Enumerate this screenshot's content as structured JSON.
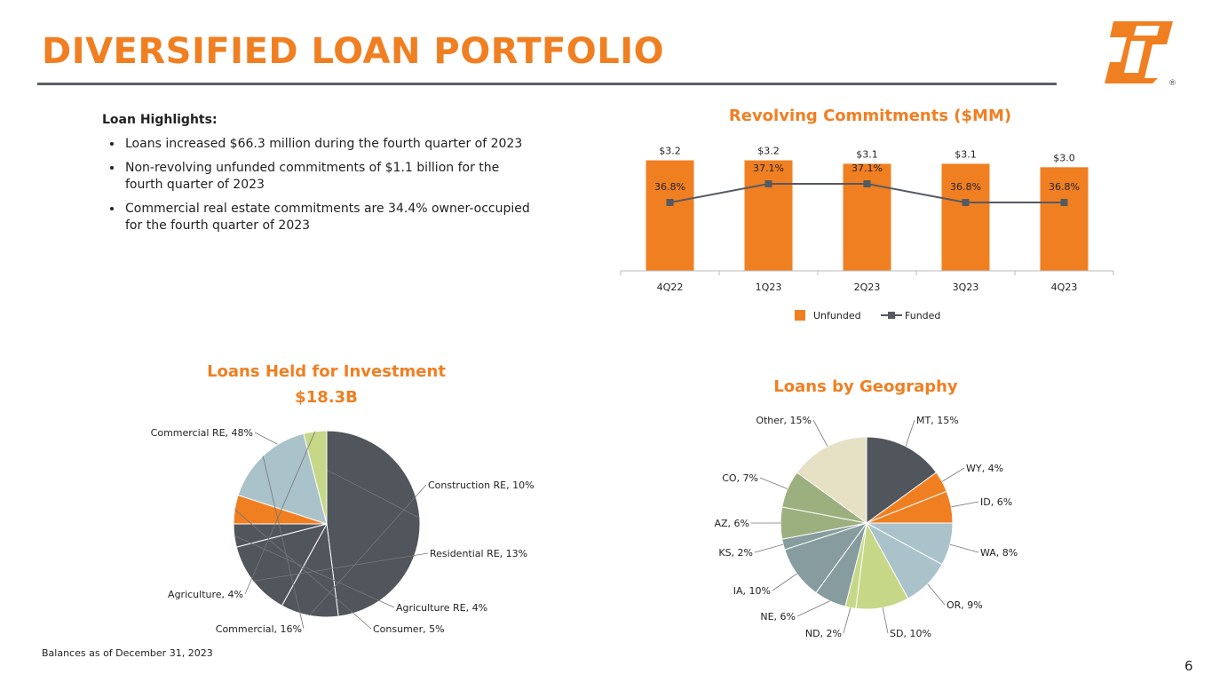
{
  "page": {
    "title": "DIVERSIFIED LOAN PORTFOLIO",
    "footnote": "Balances as of December 31, 2023",
    "page_number": "6",
    "logo_icon": "first-interstate-logo-icon",
    "logo_mark": "®"
  },
  "highlights": {
    "heading": "Loan Highlights:",
    "bullets": [
      "Loans increased $66.3 million during the fourth quarter of 2023",
      "Non-revolving unfunded commitments of $1.1 billion for the fourth quarter of 2023",
      "Commercial real estate commitments are 34.4% owner-occupied for the fourth quarter of 2023"
    ]
  },
  "colors": {
    "accent": "#f07f22",
    "dark": "#555a61",
    "rule": "#5b5f66"
  },
  "chart_data": [
    {
      "type": "bar",
      "title": "Revolving Commitments ($MM)",
      "categories": [
        "4Q22",
        "1Q23",
        "2Q23",
        "3Q23",
        "4Q23"
      ],
      "series": [
        {
          "name": "Unfunded",
          "kind": "bar",
          "color": "#f07f22",
          "values": [
            3.2,
            3.2,
            3.1,
            3.1,
            3.0
          ],
          "labels": [
            "$3.2",
            "$3.2",
            "$3.1",
            "$3.1",
            "$3.0"
          ]
        },
        {
          "name": "Funded",
          "kind": "line",
          "color": "#555a61",
          "values": [
            36.8,
            37.1,
            37.1,
            36.8,
            36.8
          ],
          "labels": [
            "36.8%",
            "37.1%",
            "37.1%",
            "36.8%",
            "36.8%"
          ]
        }
      ],
      "ylim": [
        0,
        3.6
      ],
      "y2lim": [
        35.7,
        37.7
      ],
      "legend": "bottom"
    },
    {
      "type": "pie",
      "title": "Loans Held for Investment",
      "subtitle": "$18.3B",
      "slices": [
        {
          "label": "Commercial RE, 48%",
          "value": 48,
          "color": "#51555c"
        },
        {
          "label": "Construction RE, 10%",
          "value": 10,
          "color": "#51555c"
        },
        {
          "label": "Residential RE, 13%",
          "value": 13,
          "color": "#51555c"
        },
        {
          "label": "Agriculture RE, 4%",
          "value": 4,
          "color": "#51555c"
        },
        {
          "label": "Consumer, 5%",
          "value": 5,
          "color": "#f07f22"
        },
        {
          "label": "Commercial, 16%",
          "value": 16,
          "color": "#aac2ca"
        },
        {
          "label": "Agriculture, 4%",
          "value": 4,
          "color": "#c6d888"
        }
      ]
    },
    {
      "type": "pie",
      "title": "Loans by Geography",
      "slices": [
        {
          "label": "MT, 15%",
          "value": 15,
          "color": "#51555c"
        },
        {
          "label": "WY, 4%",
          "value": 4,
          "color": "#f07f22"
        },
        {
          "label": "ID, 6%",
          "value": 6,
          "color": "#f07f22"
        },
        {
          "label": "WA, 8%",
          "value": 8,
          "color": "#aac2ca"
        },
        {
          "label": "OR, 9%",
          "value": 9,
          "color": "#aac2ca"
        },
        {
          "label": "SD, 10%",
          "value": 10,
          "color": "#c6d888"
        },
        {
          "label": "ND, 2%",
          "value": 2,
          "color": "#c6d888"
        },
        {
          "label": "NE, 6%",
          "value": 6,
          "color": "#869c9e"
        },
        {
          "label": "IA, 10%",
          "value": 10,
          "color": "#869c9e"
        },
        {
          "label": "KS, 2%",
          "value": 2,
          "color": "#869c9e"
        },
        {
          "label": "AZ, 6%",
          "value": 6,
          "color": "#9cb07f"
        },
        {
          "label": "CO, 7%",
          "value": 7,
          "color": "#9cb07f"
        },
        {
          "label": "Other, 15%",
          "value": 15,
          "color": "#e6e0c5"
        }
      ]
    }
  ]
}
